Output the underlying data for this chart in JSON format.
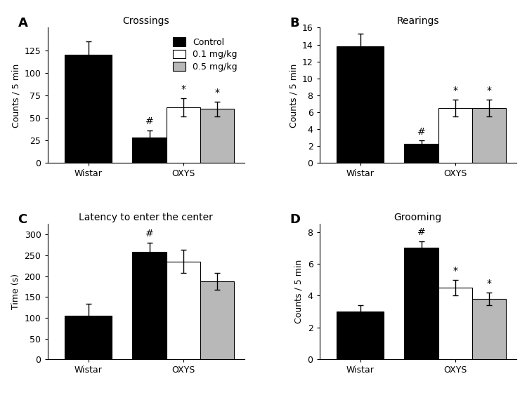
{
  "panels": {
    "A": {
      "title": "Crossings",
      "ylabel": "Counts / 5 min",
      "ylim": [
        0,
        150
      ],
      "yticks": [
        0,
        25,
        50,
        75,
        100,
        125
      ],
      "wistar": {
        "mean": [
          120
        ],
        "err": [
          15
        ]
      },
      "oxys": {
        "mean": [
          28,
          62,
          60
        ],
        "err": [
          8,
          10,
          8
        ]
      },
      "annotations": {
        "oxys_black": "#",
        "oxys_white": "*",
        "oxys_gray": "*"
      },
      "show_legend": true
    },
    "B": {
      "title": "Rearings",
      "ylabel": "Counts / 5 min",
      "ylim": [
        0,
        16
      ],
      "yticks": [
        0,
        2,
        4,
        6,
        8,
        10,
        12,
        14,
        16
      ],
      "wistar": {
        "mean": [
          13.8
        ],
        "err": [
          1.5
        ]
      },
      "oxys": {
        "mean": [
          2.3,
          6.5,
          6.5
        ],
        "err": [
          0.35,
          1.0,
          1.0
        ]
      },
      "annotations": {
        "oxys_black": "#",
        "oxys_white": "*",
        "oxys_gray": "*"
      },
      "show_legend": false
    },
    "C": {
      "title": "Latency to enter the center",
      "ylabel": "Time (s)",
      "ylim": [
        0,
        325
      ],
      "yticks": [
        0,
        50,
        100,
        150,
        200,
        250,
        300
      ],
      "wistar": {
        "mean": [
          105
        ],
        "err": [
          28
        ]
      },
      "oxys": {
        "mean": [
          258,
          235,
          188
        ],
        "err": [
          22,
          28,
          20
        ]
      },
      "annotations": {
        "oxys_black": "#",
        "oxys_white": null,
        "oxys_gray": null
      },
      "show_legend": false
    },
    "D": {
      "title": "Grooming",
      "ylabel": "Counts / 5 min",
      "ylim": [
        0,
        8.5
      ],
      "yticks": [
        0,
        2,
        4,
        6,
        8
      ],
      "wistar": {
        "mean": [
          3.0
        ],
        "err": [
          0.4
        ]
      },
      "oxys": {
        "mean": [
          7.0,
          4.5,
          3.8
        ],
        "err": [
          0.4,
          0.5,
          0.4
        ]
      },
      "annotations": {
        "oxys_black": "#",
        "oxys_white": "*",
        "oxys_gray": "*"
      },
      "show_legend": false
    }
  },
  "colors": {
    "black": "#000000",
    "white": "#ffffff",
    "gray": "#b8b8b8"
  },
  "bar_width": 0.25,
  "xtick_labels": [
    "Wistar",
    "OXYS"
  ],
  "legend_labels": [
    "Control",
    "0.1 mg/kg",
    "0.5 mg/kg"
  ],
  "background_color": "#ffffff",
  "edgecolor": "#000000",
  "fontsize_title": 10,
  "fontsize_label": 9,
  "fontsize_tick": 9,
  "fontsize_annot": 10,
  "fontsize_legend": 9,
  "fontsize_panel_label": 13,
  "panel_labels": [
    "A",
    "B",
    "C",
    "D"
  ]
}
